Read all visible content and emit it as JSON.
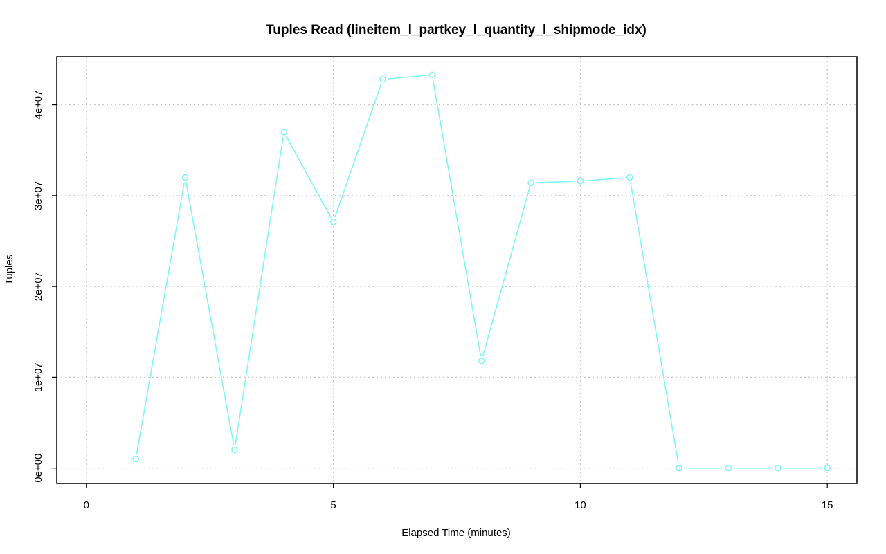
{
  "chart_data": {
    "type": "line",
    "title": "Tuples Read (lineitem_l_partkey_l_quantity_l_shipmode_idx)",
    "xlabel": "Elapsed Time (minutes)",
    "ylabel": "Tuples",
    "xlim": [
      -0.6,
      15.6
    ],
    "ylim": [
      -1700000,
      45300000
    ],
    "x_ticks": [
      0,
      5,
      10,
      15
    ],
    "x_tick_labels": [
      "0",
      "5",
      "10",
      "15"
    ],
    "y_ticks": [
      0,
      10000000,
      20000000,
      30000000,
      40000000
    ],
    "y_tick_labels": [
      "0e+00",
      "1e+07",
      "2e+07",
      "3e+07",
      "4e+07"
    ],
    "grid": true,
    "series": [
      {
        "color": "#7ff7f7",
        "x": [
          1,
          2,
          3,
          4,
          5,
          6,
          7,
          8,
          9,
          10,
          11,
          12,
          13,
          14,
          15
        ],
        "values": [
          1000000,
          32000000,
          2000000,
          37000000,
          27100000,
          42800000,
          43300000,
          11800000,
          31400000,
          31600000,
          32000000,
          0,
          0,
          0,
          0
        ]
      }
    ]
  }
}
